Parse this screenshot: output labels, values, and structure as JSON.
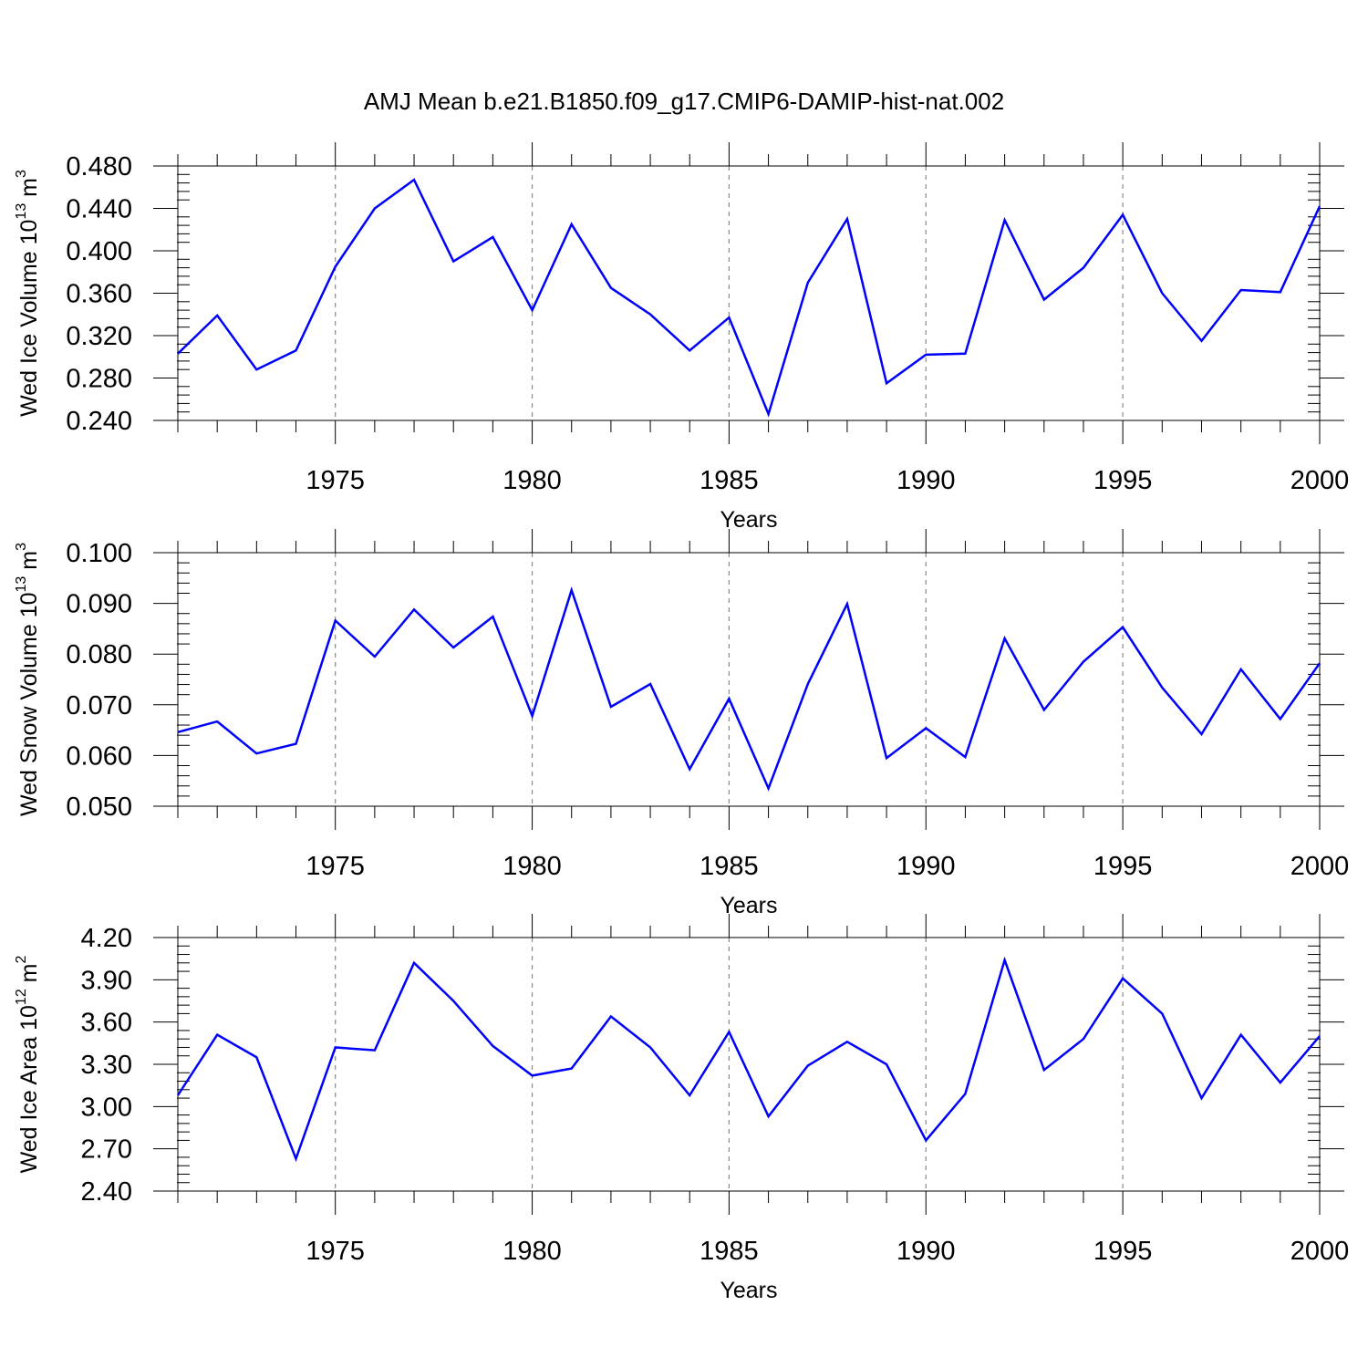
{
  "chart_data": {
    "title": "AMJ Mean b.e21.B1850.f09_g17.CMIP6-DAMIP-hist-nat.002",
    "colors": {
      "series": "#0000ff",
      "grid": "#888888",
      "axes": "#000000"
    },
    "panels": [
      {
        "type": "line",
        "ylabel": {
          "main": "Wed Ice Volume 10",
          "sup": "13",
          "unit": " m",
          "unit_sup": "3"
        },
        "xlabel": "Years",
        "xlim": [
          1971,
          2000
        ],
        "ylim": [
          0.24,
          0.48
        ],
        "yticks": [
          0.24,
          0.28,
          0.32,
          0.36,
          0.4,
          0.44,
          0.48
        ],
        "ytick_labels": [
          "0.240",
          "0.280",
          "0.320",
          "0.360",
          "0.400",
          "0.440",
          "0.480"
        ],
        "xticks": [
          1975,
          1980,
          1985,
          1990,
          1995,
          2000
        ],
        "xtick_labels": [
          "1975",
          "1980",
          "1985",
          "1990",
          "1995",
          "2000"
        ],
        "grid": "vertical-dashed",
        "x": [
          1971,
          1972,
          1973,
          1974,
          1975,
          1976,
          1977,
          1978,
          1979,
          1980,
          1981,
          1982,
          1983,
          1984,
          1985,
          1986,
          1987,
          1988,
          1989,
          1990,
          1991,
          1992,
          1993,
          1994,
          1995,
          1996,
          1997,
          1998,
          1999,
          2000
        ],
        "y": [
          0.303,
          0.339,
          0.288,
          0.306,
          0.385,
          0.44,
          0.467,
          0.39,
          0.413,
          0.344,
          0.425,
          0.365,
          0.34,
          0.306,
          0.337,
          0.246,
          0.37,
          0.43,
          0.275,
          0.302,
          0.303,
          0.429,
          0.354,
          0.384,
          0.434,
          0.36,
          0.315,
          0.363,
          0.361,
          0.442
        ]
      },
      {
        "type": "line",
        "ylabel": {
          "main": "Wed Snow Volume 10",
          "sup": "13",
          "unit": " m",
          "unit_sup": "3"
        },
        "xlabel": "Years",
        "xlim": [
          1971,
          2000
        ],
        "ylim": [
          0.05,
          0.1
        ],
        "yticks": [
          0.05,
          0.06,
          0.07,
          0.08,
          0.09,
          0.1
        ],
        "ytick_labels": [
          "0.050",
          "0.060",
          "0.070",
          "0.080",
          "0.090",
          "0.100"
        ],
        "xticks": [
          1975,
          1980,
          1985,
          1990,
          1995,
          2000
        ],
        "xtick_labels": [
          "1975",
          "1980",
          "1985",
          "1990",
          "1995",
          "2000"
        ],
        "grid": "vertical-dashed",
        "x": [
          1971,
          1972,
          1973,
          1974,
          1975,
          1976,
          1977,
          1978,
          1979,
          1980,
          1981,
          1982,
          1983,
          1984,
          1985,
          1986,
          1987,
          1988,
          1989,
          1990,
          1991,
          1992,
          1993,
          1994,
          1995,
          1996,
          1997,
          1998,
          1999,
          2000
        ],
        "y": [
          0.0646,
          0.0667,
          0.0604,
          0.0623,
          0.0866,
          0.0795,
          0.0888,
          0.0813,
          0.0874,
          0.0678,
          0.0926,
          0.0696,
          0.0741,
          0.0573,
          0.0712,
          0.0535,
          0.0741,
          0.0899,
          0.0595,
          0.0654,
          0.0597,
          0.0831,
          0.069,
          0.0785,
          0.0853,
          0.0734,
          0.0642,
          0.077,
          0.0672,
          0.0782
        ]
      },
      {
        "type": "line",
        "ylabel": {
          "main": "Wed Ice Area 10",
          "sup": "12",
          "unit": " m",
          "unit_sup": "2"
        },
        "xlabel": "Years",
        "xlim": [
          1971,
          2000
        ],
        "ylim": [
          2.4,
          4.2
        ],
        "yticks": [
          2.4,
          2.7,
          3.0,
          3.3,
          3.6,
          3.9,
          4.2
        ],
        "ytick_labels": [
          "2.40",
          "2.70",
          "3.00",
          "3.30",
          "3.60",
          "3.90",
          "4.20"
        ],
        "xticks": [
          1975,
          1980,
          1985,
          1990,
          1995,
          2000
        ],
        "xtick_labels": [
          "1975",
          "1980",
          "1985",
          "1990",
          "1995",
          "2000"
        ],
        "grid": "vertical-dashed",
        "x": [
          1971,
          1972,
          1973,
          1974,
          1975,
          1976,
          1977,
          1978,
          1979,
          1980,
          1981,
          1982,
          1983,
          1984,
          1985,
          1986,
          1987,
          1988,
          1989,
          1990,
          1991,
          1992,
          1993,
          1994,
          1995,
          1996,
          1997,
          1998,
          1999,
          2000
        ],
        "y": [
          3.08,
          3.51,
          3.35,
          2.63,
          3.42,
          3.4,
          4.02,
          3.75,
          3.43,
          3.22,
          3.27,
          3.64,
          3.42,
          3.08,
          3.53,
          2.93,
          3.29,
          3.46,
          3.3,
          2.76,
          3.09,
          4.04,
          3.26,
          3.48,
          3.91,
          3.66,
          3.06,
          3.51,
          3.17,
          3.5
        ]
      }
    ]
  }
}
